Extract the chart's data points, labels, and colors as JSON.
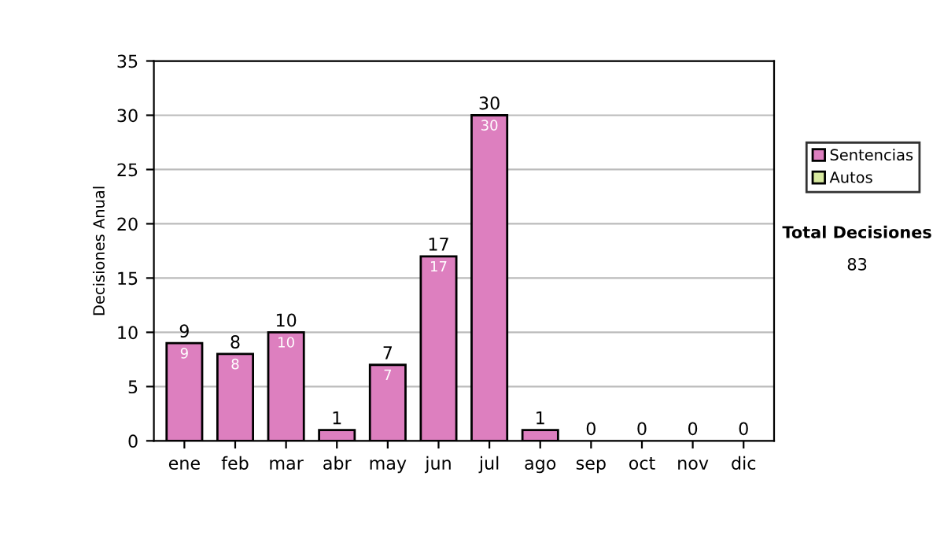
{
  "chart_data": {
    "type": "bar",
    "stacked": true,
    "ylabel": "Decisiones Anual",
    "categories": [
      "ene",
      "feb",
      "mar",
      "abr",
      "may",
      "jun",
      "jul",
      "ago",
      "sep",
      "oct",
      "nov",
      "dic"
    ],
    "series": [
      {
        "name": "Sentencias",
        "color": "#dd7fbf",
        "values": [
          9,
          8,
          10,
          1,
          7,
          17,
          30,
          1,
          0,
          0,
          0,
          0
        ],
        "value_labels": [
          "9",
          "8",
          "10",
          null,
          "7",
          "17",
          "30",
          null,
          null,
          null,
          null,
          null
        ]
      },
      {
        "name": "Autos",
        "color": "#d8eaa0",
        "values": [
          0,
          0,
          0,
          0,
          0,
          0,
          0,
          0,
          0,
          0,
          0,
          0
        ]
      }
    ],
    "totals": [
      "9",
      "8",
      "10",
      "1",
      "7",
      "17",
      "30",
      "1",
      "0",
      "0",
      "0",
      "0"
    ],
    "ylim": [
      0,
      35
    ],
    "yticks": [
      0,
      5,
      10,
      15,
      20,
      25,
      30,
      35
    ],
    "grid": "y",
    "legend": "right",
    "annotations": [
      "Total Decisiones",
      "83"
    ]
  }
}
